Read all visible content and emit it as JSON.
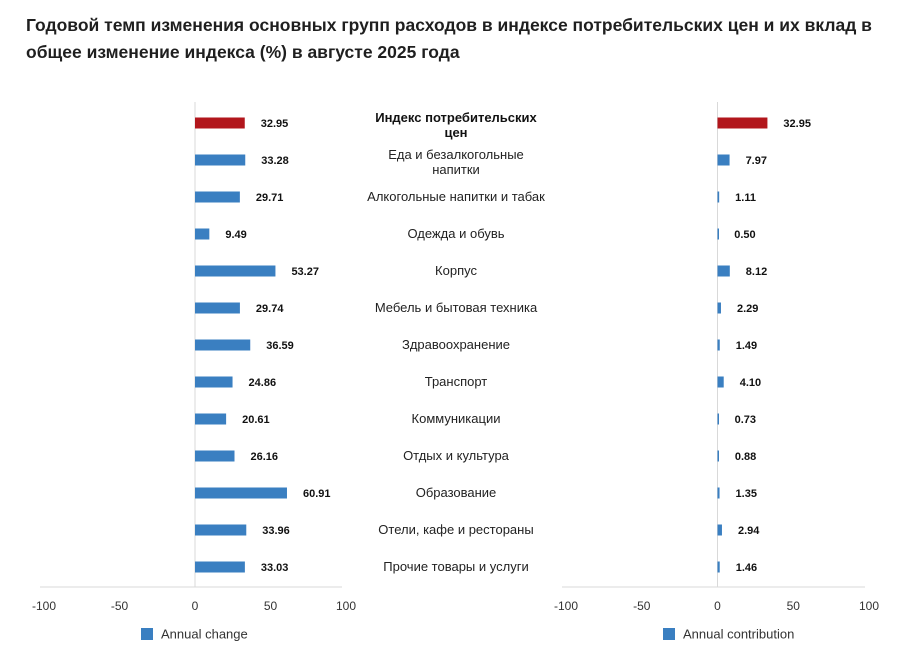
{
  "title": "Годовой темп изменения основных групп расходов в индексе потребительских цен и их вклад в общее изменение индекса (%) в августе 2025 года",
  "colors": {
    "highlight": "#b2161c",
    "bar": "#3a7fc1",
    "axis": "#d9d9d9",
    "text": "#222222"
  },
  "chart_data": [
    {
      "type": "bar",
      "orientation": "horizontal",
      "series": [
        {
          "name": "Annual change",
          "values": [
            32.95,
            33.28,
            29.71,
            9.49,
            53.27,
            29.74,
            36.59,
            24.86,
            20.61,
            26.16,
            60.91,
            33.96,
            33.03
          ],
          "value_labels": [
            "32.95",
            "33.28",
            "29.71",
            "9.49",
            "53.27",
            "29.74",
            "36.59",
            "24.86",
            "20.61",
            "26.16",
            "60.91",
            "33.96",
            "33.03"
          ]
        }
      ],
      "highlight_index": 0,
      "xlim": [
        -100,
        100
      ],
      "xticks": [
        -100,
        -50,
        0,
        50,
        100
      ],
      "xtick_labels": [
        "-100",
        "-50",
        "0",
        "50",
        "100"
      ],
      "legend": "bottom-left",
      "grid": false
    },
    {
      "type": "bar",
      "orientation": "horizontal",
      "series": [
        {
          "name": "Annual contribution",
          "values": [
            32.95,
            7.97,
            1.11,
            0.5,
            8.12,
            2.29,
            1.49,
            4.1,
            0.73,
            0.88,
            1.35,
            2.94,
            1.46
          ],
          "value_labels": [
            "32.95",
            "7.97",
            "1.11",
            "0.50",
            "8.12",
            "2.29",
            "1.49",
            "4.10",
            "0.73",
            "0.88",
            "1.35",
            "2.94",
            "1.46"
          ]
        }
      ],
      "highlight_index": 0,
      "xlim": [
        -100,
        100
      ],
      "xticks": [
        -100,
        -50,
        0,
        50,
        100
      ],
      "xtick_labels": [
        "-100",
        "-50",
        "0",
        "50",
        "100"
      ],
      "legend": "bottom-left",
      "grid": false
    }
  ],
  "categories": [
    [
      "Индекс потребительских",
      "цен"
    ],
    [
      "Еда и безалкогольные",
      "напитки"
    ],
    [
      "Алкогольные напитки и табак"
    ],
    [
      "Одежда и обувь"
    ],
    [
      "Корпус"
    ],
    [
      "Мебель и бытовая техника"
    ],
    [
      "Здравоохранение"
    ],
    [
      "Транспорт"
    ],
    [
      "Коммуникации"
    ],
    [
      "Отдых и культура"
    ],
    [
      "Образование"
    ],
    [
      "Отели, кафе и рестораны"
    ],
    [
      "Прочие товары и услуги"
    ]
  ]
}
